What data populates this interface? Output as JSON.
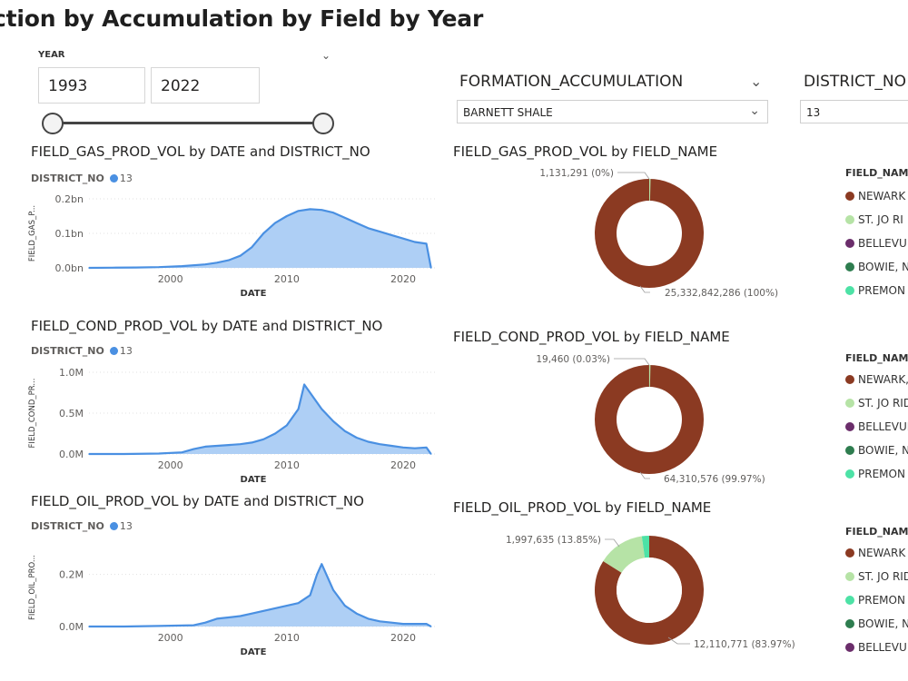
{
  "page_title": "ction by Accumulation by Field by Year",
  "year_slicer": {
    "label": "YEAR",
    "from": "1993",
    "to": "2022"
  },
  "formation": {
    "label": "FORMATION_ACCUMULATION",
    "value": "BARNETT SHALE"
  },
  "district": {
    "label": "DISTRICT_NO",
    "value": "13"
  },
  "colors": {
    "line": "#4a90e2",
    "area": "#aecff5",
    "newark": "#8b3a22",
    "st_jo": "#b6e3a6",
    "bellevue": "#6b2e6b",
    "bowie": "#2e7d4f",
    "premont": "#4de2a6"
  },
  "line_charts": [
    {
      "title": "FIELD_GAS_PROD_VOL by DATE and DISTRICT_NO",
      "legend_label": "DISTRICT_NO",
      "legend_value": "13",
      "y_label": "FIELD_GAS_P...",
      "x_label": "DATE",
      "y_ticks": [
        "0.0bn",
        "0.1bn",
        "0.2bn"
      ],
      "x_ticks": [
        "2000",
        "2010",
        "2020"
      ]
    },
    {
      "title": "FIELD_COND_PROD_VOL by DATE and DISTRICT_NO",
      "legend_label": "DISTRICT_NO",
      "legend_value": "13",
      "y_label": "FIELD_COND_PR...",
      "x_label": "DATE",
      "y_ticks": [
        "0.0M",
        "0.5M",
        "1.0M"
      ],
      "x_ticks": [
        "2000",
        "2010",
        "2020"
      ]
    },
    {
      "title": "FIELD_OIL_PROD_VOL by DATE and DISTRICT_NO",
      "legend_label": "DISTRICT_NO",
      "legend_value": "13",
      "y_label": "FIELD_OIL_PRO...",
      "x_label": "DATE",
      "y_ticks": [
        "0.0M",
        "0.2M"
      ],
      "x_ticks": [
        "2000",
        "2010",
        "2020"
      ]
    }
  ],
  "donut_charts": [
    {
      "title": "FIELD_GAS_PROD_VOL by FIELD_NAME",
      "small_label": "1,131,291 (0%)",
      "large_label": "25,332,842,286 (100%)",
      "legend_title": "FIELD_NAM",
      "legend_items": [
        {
          "label": "NEWARK",
          "color": "#8b3a22"
        },
        {
          "label": "ST. JO RI",
          "color": "#b6e3a6"
        },
        {
          "label": "BELLEVU",
          "color": "#6b2e6b"
        },
        {
          "label": "BOWIE, N",
          "color": "#2e7d4f"
        },
        {
          "label": "PREMON",
          "color": "#4de2a6"
        }
      ]
    },
    {
      "title": "FIELD_COND_PROD_VOL by FIELD_NAME",
      "small_label": "19,460 (0.03%)",
      "large_label": "64,310,576 (99.97%)",
      "legend_title": "FIELD_NAM",
      "legend_items": [
        {
          "label": "NEWARK,",
          "color": "#8b3a22"
        },
        {
          "label": "ST. JO RID",
          "color": "#b6e3a6"
        },
        {
          "label": "BELLEVUE",
          "color": "#6b2e6b"
        },
        {
          "label": "BOWIE, N",
          "color": "#2e7d4f"
        },
        {
          "label": "PREMON",
          "color": "#4de2a6"
        }
      ]
    },
    {
      "title": "FIELD_OIL_PROD_VOL by FIELD_NAME",
      "small_label": "1,997,635 (13.85%)",
      "large_label": "12,110,771 (83.97%)",
      "legend_title": "FIELD_NAM",
      "legend_items": [
        {
          "label": "NEWARK",
          "color": "#8b3a22"
        },
        {
          "label": "ST. JO RID",
          "color": "#b6e3a6"
        },
        {
          "label": "PREMON",
          "color": "#4de2a6"
        },
        {
          "label": "BOWIE, N",
          "color": "#2e7d4f"
        },
        {
          "label": "BELLEVU",
          "color": "#6b2e6b"
        }
      ]
    }
  ],
  "chart_data": [
    {
      "type": "area",
      "title": "FIELD_GAS_PROD_VOL by DATE and DISTRICT_NO",
      "xlabel": "DATE",
      "ylabel": "FIELD_GAS_P...",
      "x": [
        1993,
        1995,
        1997,
        1999,
        2001,
        2003,
        2004,
        2005,
        2006,
        2007,
        2008,
        2009,
        2010,
        2011,
        2012,
        2013,
        2014,
        2015,
        2016,
        2017,
        2018,
        2019,
        2020,
        2021,
        2022,
        2022.4
      ],
      "y": [
        0.0,
        0.0005,
        0.001,
        0.002,
        0.005,
        0.01,
        0.015,
        0.022,
        0.035,
        0.06,
        0.1,
        0.13,
        0.15,
        0.165,
        0.17,
        0.168,
        0.16,
        0.145,
        0.13,
        0.115,
        0.105,
        0.095,
        0.085,
        0.075,
        0.07,
        0.0
      ],
      "ylim": [
        0,
        0.2
      ],
      "y_unit": "bn",
      "series_name": "13"
    },
    {
      "type": "area",
      "title": "FIELD_COND_PROD_VOL by DATE and DISTRICT_NO",
      "xlabel": "DATE",
      "ylabel": "FIELD_COND_PR...",
      "x": [
        1993,
        1996,
        1999,
        2001,
        2002,
        2003,
        2004,
        2005,
        2006,
        2007,
        2008,
        2009,
        2010,
        2011,
        2011.5,
        2012,
        2013,
        2014,
        2015,
        2016,
        2017,
        2018,
        2019,
        2020,
        2021,
        2022,
        2022.4
      ],
      "y": [
        0.0,
        0.0,
        0.005,
        0.02,
        0.06,
        0.09,
        0.1,
        0.11,
        0.12,
        0.14,
        0.18,
        0.25,
        0.35,
        0.55,
        0.85,
        0.75,
        0.55,
        0.4,
        0.28,
        0.2,
        0.15,
        0.12,
        0.1,
        0.08,
        0.07,
        0.08,
        0.0
      ],
      "ylim": [
        0,
        1.0
      ],
      "y_unit": "M",
      "series_name": "13"
    },
    {
      "type": "area",
      "title": "FIELD_OIL_PROD_VOL by DATE and DISTRICT_NO",
      "xlabel": "DATE",
      "ylabel": "FIELD_OIL_PRO...",
      "x": [
        1993,
        1996,
        1999,
        2002,
        2003,
        2004,
        2005,
        2006,
        2007,
        2008,
        2009,
        2010,
        2011,
        2012,
        2012.6,
        2013,
        2014,
        2015,
        2016,
        2017,
        2018,
        2019,
        2020,
        2021,
        2022,
        2022.4
      ],
      "y": [
        0.0,
        0.0,
        0.002,
        0.005,
        0.015,
        0.03,
        0.035,
        0.04,
        0.05,
        0.06,
        0.07,
        0.08,
        0.09,
        0.12,
        0.2,
        0.24,
        0.14,
        0.08,
        0.05,
        0.03,
        0.02,
        0.015,
        0.01,
        0.01,
        0.01,
        0.0
      ],
      "ylim": [
        0,
        0.3
      ],
      "y_unit": "M",
      "series_name": "13"
    },
    {
      "type": "pie",
      "title": "FIELD_GAS_PROD_VOL by FIELD_NAME",
      "labels": [
        "NEWARK",
        "ST. JO RI"
      ],
      "values": [
        25332842286,
        1131291
      ],
      "colors": [
        "#8b3a22",
        "#b6e3a6"
      ]
    },
    {
      "type": "pie",
      "title": "FIELD_COND_PROD_VOL by FIELD_NAME",
      "labels": [
        "NEWARK,",
        "ST. JO RID"
      ],
      "values": [
        64310576,
        19460
      ],
      "colors": [
        "#8b3a22",
        "#b6e3a6"
      ]
    },
    {
      "type": "pie",
      "title": "FIELD_OIL_PROD_VOL by FIELD_NAME",
      "labels": [
        "NEWARK",
        "ST. JO RID",
        "PREMON"
      ],
      "values": [
        12110771,
        1997635,
        314000
      ],
      "colors": [
        "#8b3a22",
        "#b6e3a6",
        "#4de2a6"
      ]
    }
  ]
}
